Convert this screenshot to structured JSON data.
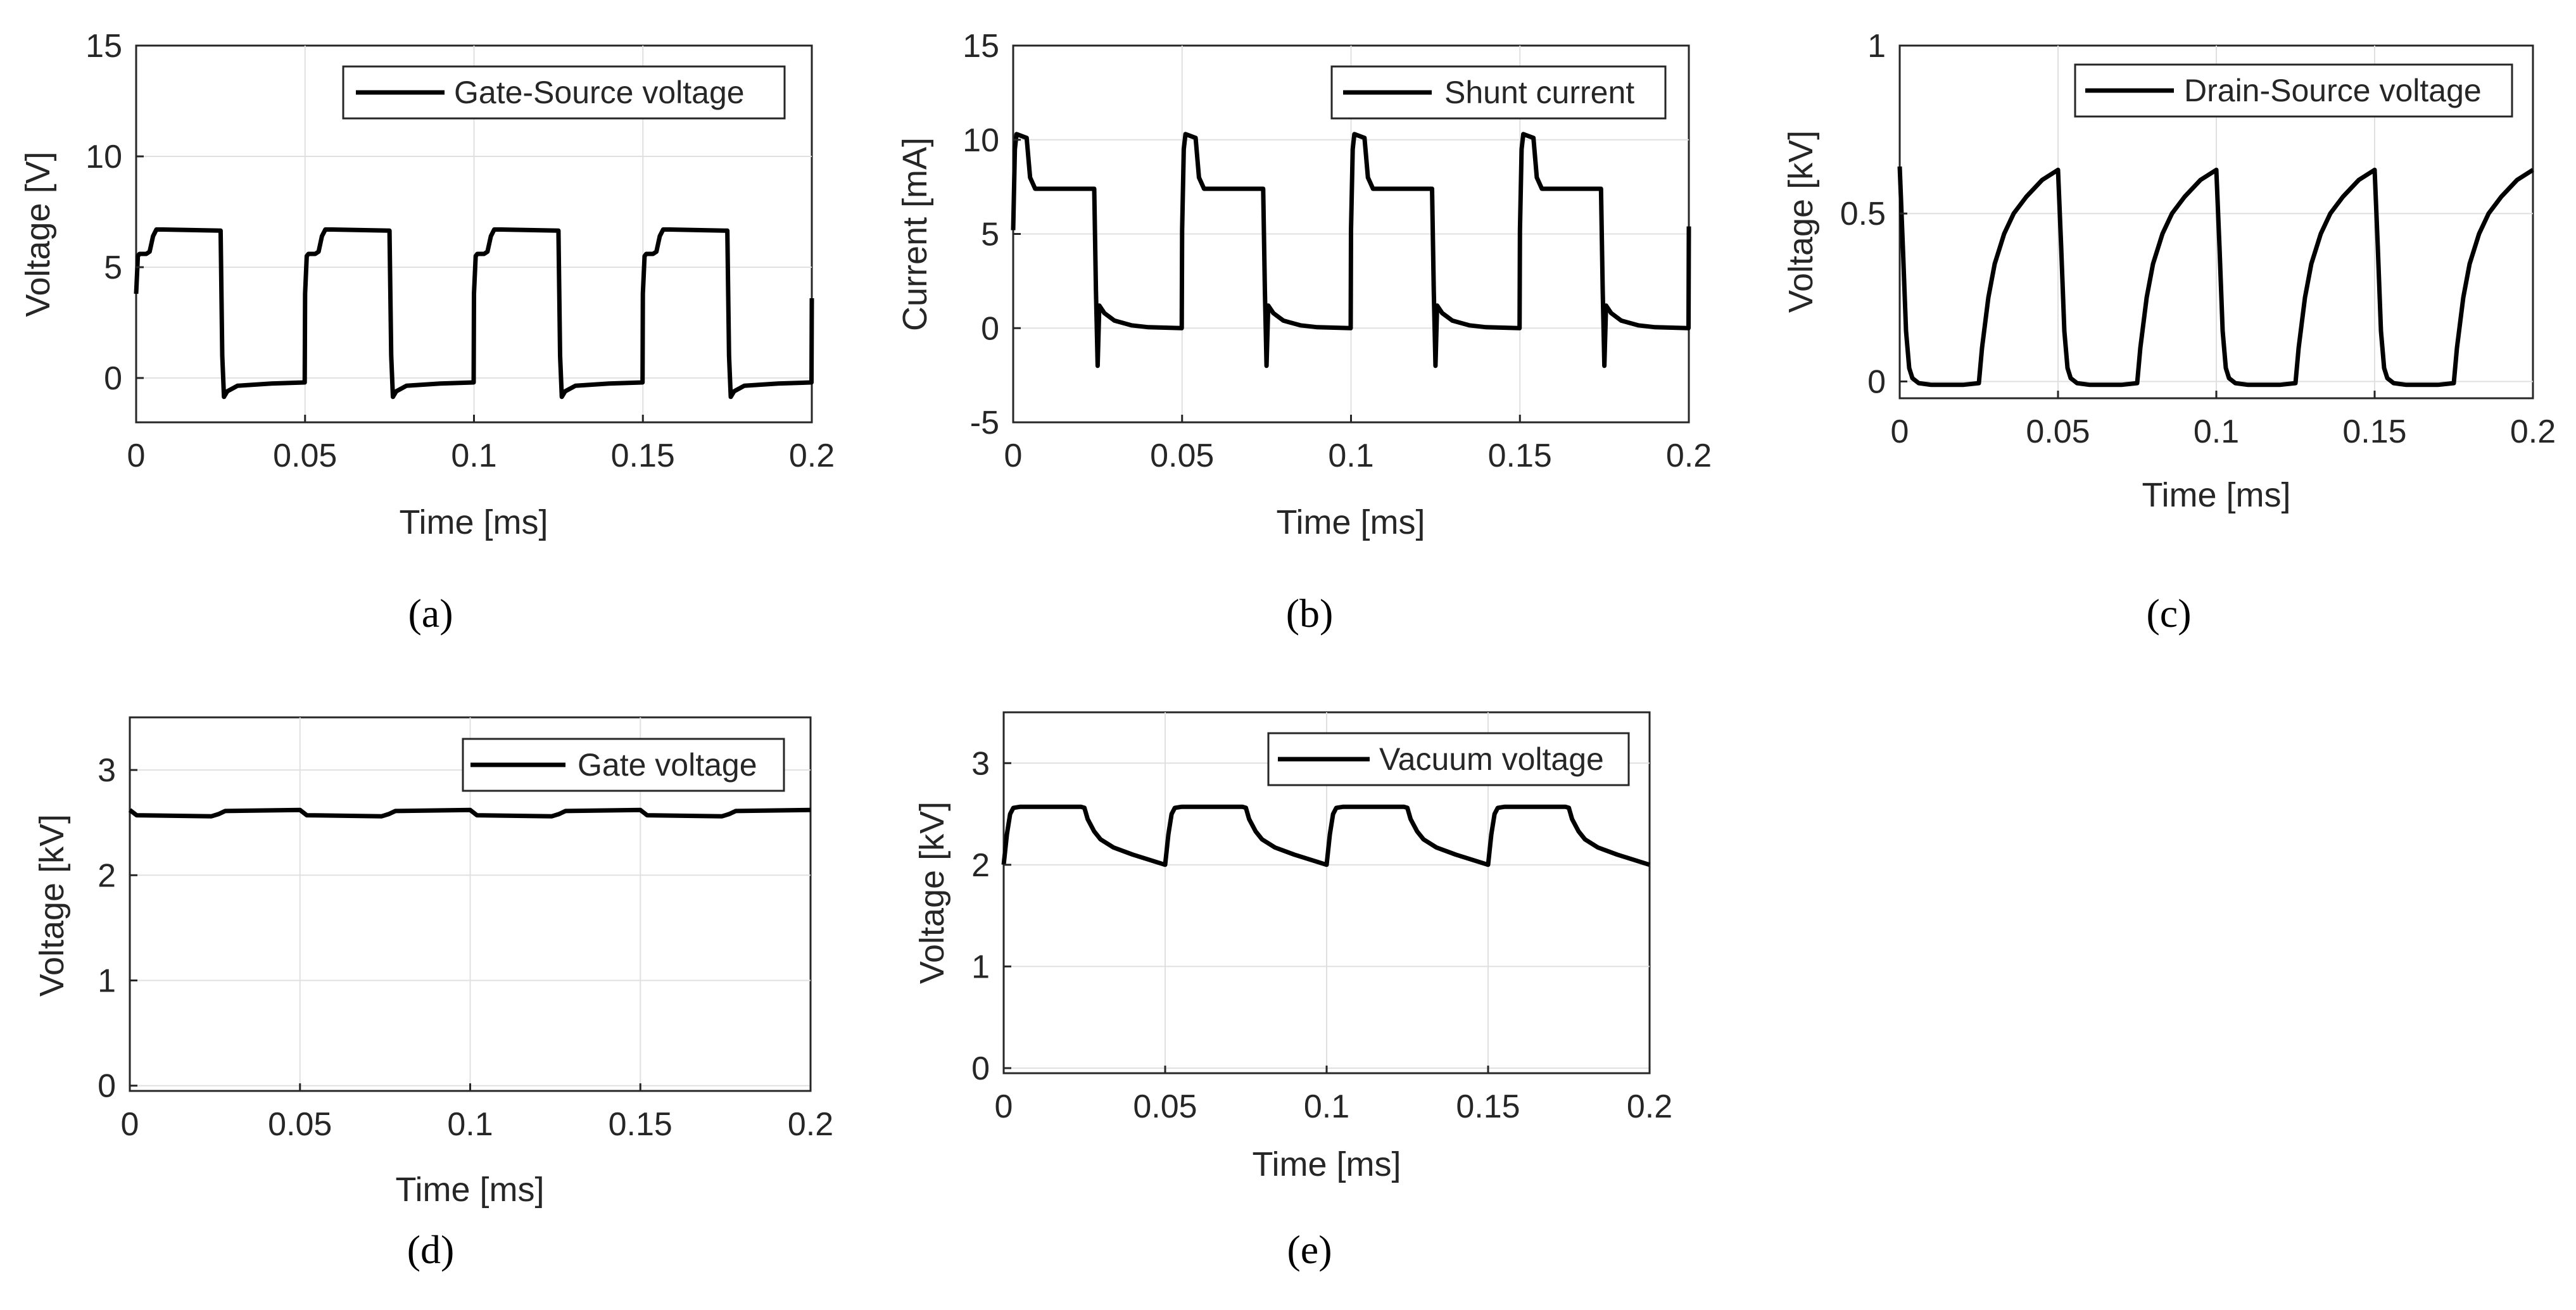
{
  "chart_data": [
    {
      "id": "a",
      "type": "line",
      "caption": "(a)",
      "xlabel": "Time [ms]",
      "ylabel": "Voltage [V]",
      "xlim": [
        0,
        0.2
      ],
      "ylim": [
        -2,
        15
      ],
      "xticks": [
        0,
        0.05,
        0.1,
        0.15,
        0.2
      ],
      "xtick_labels": [
        "0",
        "0.05",
        "0.1",
        "0.15",
        "0.2"
      ],
      "yticks": [
        0,
        5,
        10,
        15
      ],
      "ytick_labels": [
        "0",
        "5",
        "10",
        "15"
      ],
      "grid": true,
      "legend_position": "top-right",
      "series": [
        {
          "name": "Gate-Source voltage",
          "x": [
            0,
            0.0005,
            0.001,
            0.003,
            0.004,
            0.005,
            0.006,
            0.008,
            0.025,
            0.0255,
            0.026,
            0.027,
            0.03,
            0.04,
            0.0499,
            0.05,
            0.0505,
            0.051,
            0.053,
            0.054,
            0.055,
            0.056,
            0.058,
            0.075,
            0.0755,
            0.076,
            0.077,
            0.08,
            0.09,
            0.0999,
            0.1,
            0.1005,
            0.101,
            0.103,
            0.104,
            0.105,
            0.106,
            0.108,
            0.125,
            0.1255,
            0.126,
            0.127,
            0.13,
            0.14,
            0.1499,
            0.15,
            0.1505,
            0.151,
            0.153,
            0.154,
            0.155,
            0.156,
            0.158,
            0.175,
            0.1755,
            0.176,
            0.177,
            0.18,
            0.19,
            0.1999,
            0.2
          ],
          "y": [
            3.8,
            5.5,
            5.6,
            5.6,
            5.7,
            6.4,
            6.7,
            6.7,
            6.65,
            1,
            -0.85,
            -0.6,
            -0.35,
            -0.25,
            -0.2,
            3.8,
            5.5,
            5.6,
            5.6,
            5.7,
            6.4,
            6.7,
            6.7,
            6.65,
            1,
            -0.85,
            -0.6,
            -0.35,
            -0.25,
            -0.2,
            3.8,
            5.5,
            5.6,
            5.6,
            5.7,
            6.4,
            6.7,
            6.7,
            6.65,
            1,
            -0.85,
            -0.6,
            -0.35,
            -0.25,
            -0.2,
            3.8,
            5.5,
            5.6,
            5.6,
            5.7,
            6.4,
            6.7,
            6.7,
            6.65,
            1,
            -0.85,
            -0.6,
            -0.35,
            -0.25,
            -0.2,
            3.6
          ]
        }
      ]
    },
    {
      "id": "b",
      "type": "line",
      "caption": "(b)",
      "xlabel": "Time [ms]",
      "ylabel": "Current [mA]",
      "xlim": [
        0,
        0.2
      ],
      "ylim": [
        -5,
        15
      ],
      "xticks": [
        0,
        0.05,
        0.1,
        0.15,
        0.2
      ],
      "xtick_labels": [
        "0",
        "0.05",
        "0.1",
        "0.15",
        "0.2"
      ],
      "yticks": [
        -5,
        0,
        5,
        10,
        15
      ],
      "ytick_labels": [
        "-5",
        "0",
        "5",
        "10",
        "15"
      ],
      "grid": true,
      "legend_position": "top-right",
      "series": [
        {
          "name": "Shunt current",
          "x": [
            0,
            0.0005,
            0.001,
            0.004,
            0.005,
            0.0065,
            0.008,
            0.024,
            0.0245,
            0.025,
            0.0255,
            0.027,
            0.03,
            0.035,
            0.04,
            0.0499,
            0.05,
            0.0505,
            0.051,
            0.054,
            0.055,
            0.0565,
            0.058,
            0.074,
            0.0745,
            0.075,
            0.0755,
            0.077,
            0.08,
            0.085,
            0.09,
            0.0999,
            0.1,
            0.1005,
            0.101,
            0.104,
            0.105,
            0.1065,
            0.108,
            0.124,
            0.1245,
            0.125,
            0.1255,
            0.127,
            0.13,
            0.135,
            0.14,
            0.1499,
            0.15,
            0.1505,
            0.151,
            0.154,
            0.155,
            0.1565,
            0.158,
            0.174,
            0.1745,
            0.175,
            0.1755,
            0.177,
            0.18,
            0.185,
            0.19,
            0.1999,
            0.2
          ],
          "y": [
            5.2,
            9.5,
            10.3,
            10.1,
            8,
            7.4,
            7.4,
            7.4,
            2,
            -2,
            1.2,
            0.8,
            0.4,
            0.15,
            0.05,
            0,
            5.2,
            9.5,
            10.3,
            10.1,
            8,
            7.4,
            7.4,
            7.4,
            2,
            -2,
            1.2,
            0.8,
            0.4,
            0.15,
            0.05,
            0,
            5.2,
            9.5,
            10.3,
            10.1,
            8,
            7.4,
            7.4,
            7.4,
            2,
            -2,
            1.2,
            0.8,
            0.4,
            0.15,
            0.05,
            0,
            5.2,
            9.5,
            10.3,
            10.1,
            8,
            7.4,
            7.4,
            7.4,
            2,
            -2,
            1.2,
            0.8,
            0.4,
            0.15,
            0.05,
            0,
            5.4
          ]
        }
      ]
    },
    {
      "id": "c",
      "type": "line",
      "caption": "(c)",
      "xlabel": "Time [ms]",
      "ylabel": "Voltage [kV]",
      "xlim": [
        0,
        0.2
      ],
      "ylim": [
        -0.05,
        1
      ],
      "xticks": [
        0,
        0.05,
        0.1,
        0.15,
        0.2
      ],
      "xtick_labels": [
        "0",
        "0.05",
        "0.1",
        "0.15",
        "0.2"
      ],
      "yticks": [
        0,
        0.5,
        1
      ],
      "ytick_labels": [
        "0",
        "0.5",
        "1"
      ],
      "grid": true,
      "legend_position": "top-right",
      "series": [
        {
          "name": "Drain-Source voltage",
          "x": [
            0,
            0.001,
            0.002,
            0.003,
            0.004,
            0.006,
            0.01,
            0.02,
            0.025,
            0.026,
            0.028,
            0.03,
            0.033,
            0.036,
            0.04,
            0.045,
            0.05,
            0.051,
            0.052,
            0.053,
            0.054,
            0.056,
            0.06,
            0.07,
            0.075,
            0.076,
            0.078,
            0.08,
            0.083,
            0.086,
            0.09,
            0.095,
            0.1,
            0.101,
            0.102,
            0.103,
            0.104,
            0.106,
            0.11,
            0.12,
            0.125,
            0.126,
            0.128,
            0.13,
            0.133,
            0.136,
            0.14,
            0.145,
            0.15,
            0.151,
            0.152,
            0.153,
            0.154,
            0.156,
            0.16,
            0.17,
            0.175,
            0.176,
            0.178,
            0.18,
            0.183,
            0.186,
            0.19,
            0.195,
            0.2
          ],
          "y": [
            0.64,
            0.4,
            0.15,
            0.04,
            0.01,
            -0.005,
            -0.01,
            -0.01,
            -0.005,
            0.1,
            0.25,
            0.35,
            0.44,
            0.5,
            0.55,
            0.6,
            0.63,
            0.4,
            0.15,
            0.04,
            0.01,
            -0.005,
            -0.01,
            -0.01,
            -0.005,
            0.1,
            0.25,
            0.35,
            0.44,
            0.5,
            0.55,
            0.6,
            0.63,
            0.4,
            0.15,
            0.04,
            0.01,
            -0.005,
            -0.01,
            -0.01,
            -0.005,
            0.1,
            0.25,
            0.35,
            0.44,
            0.5,
            0.55,
            0.6,
            0.63,
            0.4,
            0.15,
            0.04,
            0.01,
            -0.005,
            -0.01,
            -0.01,
            -0.005,
            0.1,
            0.25,
            0.35,
            0.44,
            0.5,
            0.55,
            0.6,
            0.63
          ]
        }
      ]
    },
    {
      "id": "d",
      "type": "line",
      "caption": "(d)",
      "xlabel": "Time [ms]",
      "ylabel": "Voltage [kV]",
      "xlim": [
        0,
        0.2
      ],
      "ylim": [
        -0.05,
        3.5
      ],
      "xticks": [
        0,
        0.05,
        0.1,
        0.15,
        0.2
      ],
      "xtick_labels": [
        "0",
        "0.05",
        "0.1",
        "0.15",
        "0.2"
      ],
      "yticks": [
        0,
        1,
        2,
        3
      ],
      "ytick_labels": [
        "0",
        "1",
        "2",
        "3"
      ],
      "grid": true,
      "legend_position": "top-right",
      "series": [
        {
          "name": "Gate voltage",
          "x": [
            0,
            0.002,
            0.024,
            0.026,
            0.028,
            0.05,
            0.052,
            0.074,
            0.076,
            0.078,
            0.1,
            0.102,
            0.124,
            0.126,
            0.128,
            0.15,
            0.152,
            0.174,
            0.176,
            0.178,
            0.2
          ],
          "y": [
            2.62,
            2.57,
            2.56,
            2.58,
            2.61,
            2.62,
            2.57,
            2.56,
            2.58,
            2.61,
            2.62,
            2.57,
            2.56,
            2.58,
            2.61,
            2.62,
            2.57,
            2.56,
            2.58,
            2.61,
            2.62
          ]
        }
      ]
    },
    {
      "id": "e",
      "type": "line",
      "caption": "(e)",
      "xlabel": "Time [ms]",
      "ylabel": "Voltage [kV]",
      "xlim": [
        0,
        0.2
      ],
      "ylim": [
        -0.05,
        3.5
      ],
      "xticks": [
        0,
        0.05,
        0.1,
        0.15,
        0.2
      ],
      "xtick_labels": [
        "0",
        "0.05",
        "0.1",
        "0.15",
        "0.2"
      ],
      "yticks": [
        0,
        1,
        2,
        3
      ],
      "ytick_labels": [
        "0",
        "1",
        "2",
        "3"
      ],
      "grid": true,
      "legend_position": "top-right",
      "series": [
        {
          "name": "Vacuum voltage",
          "x": [
            0,
            0.001,
            0.002,
            0.003,
            0.005,
            0.024,
            0.025,
            0.026,
            0.028,
            0.03,
            0.034,
            0.04,
            0.045,
            0.05,
            0.051,
            0.052,
            0.053,
            0.055,
            0.074,
            0.075,
            0.076,
            0.078,
            0.08,
            0.084,
            0.09,
            0.095,
            0.1,
            0.101,
            0.102,
            0.103,
            0.105,
            0.124,
            0.125,
            0.126,
            0.128,
            0.13,
            0.134,
            0.14,
            0.145,
            0.15,
            0.151,
            0.152,
            0.153,
            0.155,
            0.174,
            0.175,
            0.176,
            0.178,
            0.18,
            0.184,
            0.19,
            0.195,
            0.2
          ],
          "y": [
            2.0,
            2.3,
            2.5,
            2.56,
            2.57,
            2.57,
            2.56,
            2.45,
            2.33,
            2.25,
            2.17,
            2.1,
            2.05,
            2.0,
            2.3,
            2.5,
            2.56,
            2.57,
            2.57,
            2.56,
            2.45,
            2.33,
            2.25,
            2.17,
            2.1,
            2.05,
            2.0,
            2.3,
            2.5,
            2.56,
            2.57,
            2.57,
            2.56,
            2.45,
            2.33,
            2.25,
            2.17,
            2.1,
            2.05,
            2.0,
            2.3,
            2.5,
            2.56,
            2.57,
            2.57,
            2.56,
            2.45,
            2.33,
            2.25,
            2.17,
            2.1,
            2.05,
            2.0
          ]
        }
      ]
    }
  ]
}
